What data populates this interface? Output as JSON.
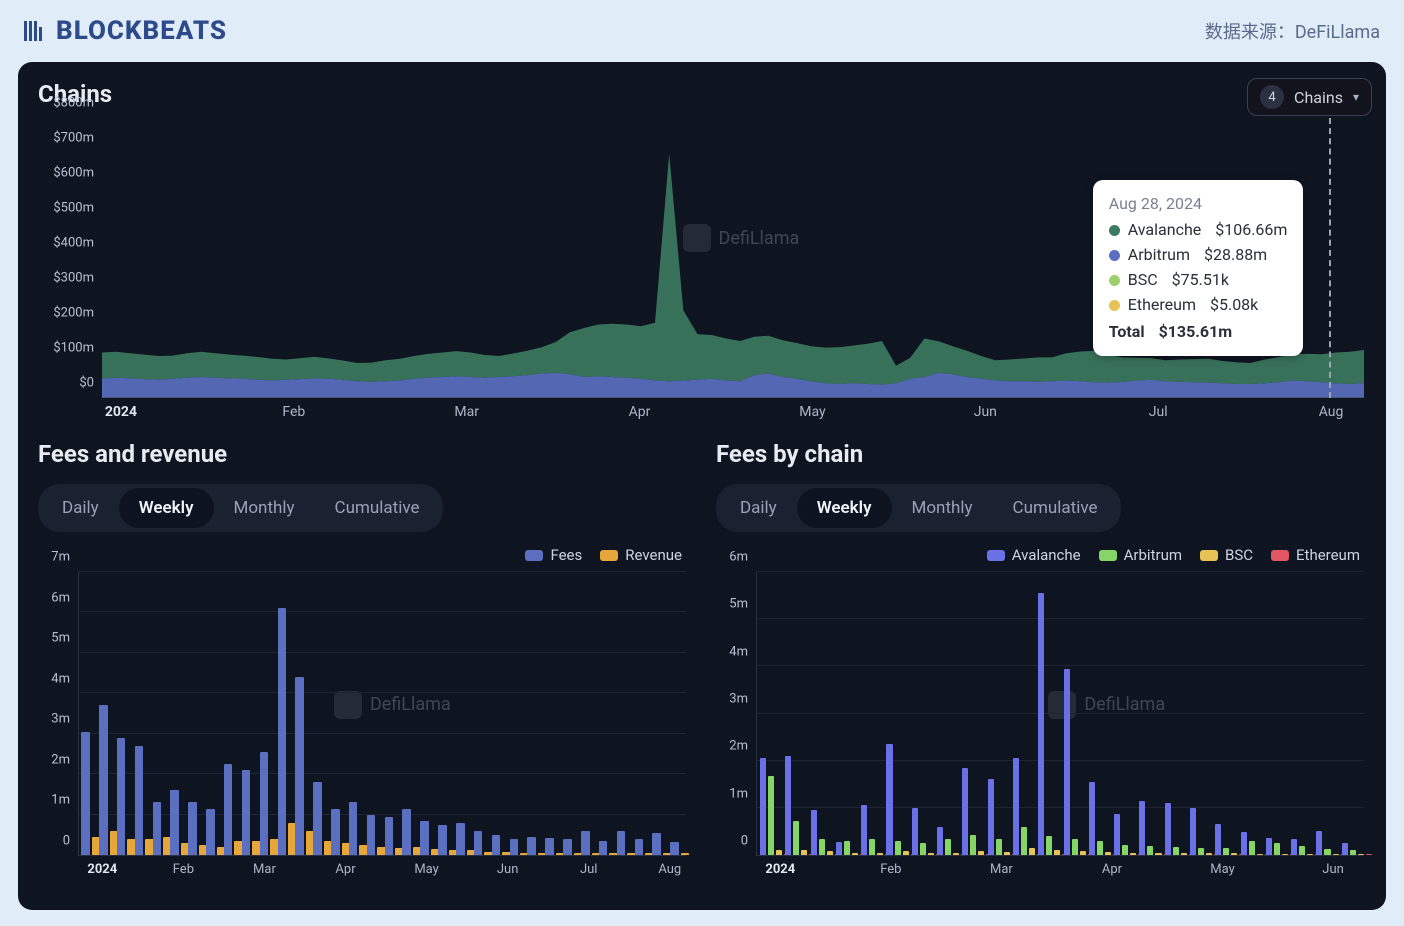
{
  "header": {
    "logo_text": "BLOCKBEATS",
    "data_source_label": "数据来源：DeFiLlama"
  },
  "palette": {
    "page_bg": "#e0edf9",
    "dashboard_bg": "#0e1420",
    "text_light": "#e8ecf2",
    "text_muted": "#9aa2b5",
    "grid": "#1e2433"
  },
  "main_chart": {
    "title": "Chains",
    "selector": {
      "count": "4",
      "label": "Chains"
    },
    "type": "stacked-area",
    "watermark": "DefiLlama",
    "y_axis": {
      "ticks": [
        "$0",
        "$100m",
        "$200m",
        "$300m",
        "$400m",
        "$500m",
        "$600m",
        "$700m",
        "$800m"
      ],
      "max": 800
    },
    "x_axis": {
      "labels": [
        "2024",
        "Feb",
        "Mar",
        "Apr",
        "May",
        "Jun",
        "Jul",
        "Aug"
      ]
    },
    "colors": {
      "Avalanche": "#3b7a5e",
      "Arbitrum": "#5a6fbf",
      "BSC": "#9fcf6a",
      "Ethereum": "#e7c255"
    },
    "series_order": [
      "Arbitrum",
      "Avalanche"
    ],
    "arbitrum_values": [
      55,
      58,
      56,
      54,
      52,
      55,
      58,
      60,
      58,
      56,
      55,
      52,
      50,
      52,
      54,
      56,
      55,
      52,
      48,
      46,
      48,
      50,
      55,
      58,
      60,
      62,
      60,
      58,
      60,
      62,
      65,
      70,
      72,
      68,
      60,
      62,
      60,
      58,
      55,
      50,
      48,
      50,
      52,
      55,
      50,
      48,
      65,
      70,
      60,
      55,
      48,
      42,
      40,
      42,
      40,
      38,
      42,
      55,
      60,
      72,
      68,
      60,
      55,
      50,
      48,
      48,
      46,
      48,
      50,
      48,
      45,
      44,
      46,
      50,
      52,
      48,
      46,
      45,
      44,
      42,
      40,
      40,
      42,
      45,
      50,
      48,
      45,
      42,
      40,
      42
    ],
    "avalanche_values": [
      75,
      74,
      72,
      70,
      68,
      66,
      70,
      72,
      70,
      68,
      66,
      65,
      62,
      58,
      60,
      62,
      58,
      55,
      52,
      55,
      60,
      62,
      65,
      68,
      70,
      72,
      70,
      65,
      60,
      65,
      70,
      75,
      88,
      120,
      140,
      148,
      152,
      152,
      150,
      165,
      650,
      200,
      130,
      125,
      120,
      115,
      110,
      108,
      105,
      102,
      100,
      102,
      105,
      108,
      115,
      125,
      50,
      60,
      110,
      90,
      80,
      75,
      65,
      58,
      62,
      65,
      70,
      68,
      78,
      85,
      90,
      78,
      70,
      65,
      62,
      60,
      64,
      66,
      68,
      64,
      62,
      60,
      68,
      72,
      75,
      78,
      80,
      88,
      92,
      95
    ],
    "tooltip": {
      "date": "Aug 28, 2024",
      "rows": [
        {
          "name": "Avalanche",
          "value": "$106.66m",
          "color": "#3b7a5e"
        },
        {
          "name": "Arbitrum",
          "value": "$28.88m",
          "color": "#5a6fbf"
        },
        {
          "name": "BSC",
          "value": "$75.51k",
          "color": "#9fcf6a"
        },
        {
          "name": "Ethereum",
          "value": "$5.08k",
          "color": "#e7c255"
        }
      ],
      "total_label": "Total",
      "total_value": "$135.61m",
      "x_percent": 97.2
    }
  },
  "tabs": [
    "Daily",
    "Weekly",
    "Monthly",
    "Cumulative"
  ],
  "active_tab": "Weekly",
  "fees_revenue": {
    "title": "Fees and revenue",
    "type": "grouped-bar",
    "watermark": "DefiLlama",
    "legend": [
      {
        "label": "Fees",
        "color": "#5a6fbf"
      },
      {
        "label": "Revenue",
        "color": "#e6a63a"
      }
    ],
    "y_axis": {
      "ticks": [
        "0",
        "1m",
        "2m",
        "3m",
        "4m",
        "5m",
        "6m",
        "7m"
      ],
      "max": 7
    },
    "x_axis": {
      "labels": [
        "2024",
        "Feb",
        "Mar",
        "Apr",
        "May",
        "Jun",
        "Jul",
        "Aug"
      ],
      "bold_index": 0
    },
    "bars": [
      {
        "f": 3.05,
        "r": 0.45
      },
      {
        "f": 3.7,
        "r": 0.6
      },
      {
        "f": 2.9,
        "r": 0.4
      },
      {
        "f": 2.7,
        "r": 0.4
      },
      {
        "f": 1.3,
        "r": 0.45
      },
      {
        "f": 1.6,
        "r": 0.3
      },
      {
        "f": 1.3,
        "r": 0.25
      },
      {
        "f": 1.15,
        "r": 0.2
      },
      {
        "f": 2.25,
        "r": 0.35
      },
      {
        "f": 2.1,
        "r": 0.35
      },
      {
        "f": 2.55,
        "r": 0.4
      },
      {
        "f": 6.1,
        "r": 0.8
      },
      {
        "f": 4.4,
        "r": 0.6
      },
      {
        "f": 1.8,
        "r": 0.35
      },
      {
        "f": 1.15,
        "r": 0.3
      },
      {
        "f": 1.3,
        "r": 0.25
      },
      {
        "f": 1.0,
        "r": 0.2
      },
      {
        "f": 0.95,
        "r": 0.18
      },
      {
        "f": 1.15,
        "r": 0.2
      },
      {
        "f": 0.85,
        "r": 0.15
      },
      {
        "f": 0.75,
        "r": 0.13
      },
      {
        "f": 0.8,
        "r": 0.12
      },
      {
        "f": 0.6,
        "r": 0.08
      },
      {
        "f": 0.5,
        "r": 0.08
      },
      {
        "f": 0.4,
        "r": 0.06
      },
      {
        "f": 0.45,
        "r": 0.06
      },
      {
        "f": 0.42,
        "r": 0.05
      },
      {
        "f": 0.4,
        "r": 0.05
      },
      {
        "f": 0.6,
        "r": 0.06
      },
      {
        "f": 0.35,
        "r": 0.05
      },
      {
        "f": 0.6,
        "r": 0.06
      },
      {
        "f": 0.4,
        "r": 0.05
      },
      {
        "f": 0.55,
        "r": 0.05
      },
      {
        "f": 0.32,
        "r": 0.04
      }
    ]
  },
  "fees_by_chain": {
    "title": "Fees by chain",
    "type": "grouped-bar",
    "watermark": "DefiLlama",
    "legend": [
      {
        "label": "Avalanche",
        "color": "#6a71e6"
      },
      {
        "label": "Arbitrum",
        "color": "#86d666"
      },
      {
        "label": "BSC",
        "color": "#e7c255"
      },
      {
        "label": "Ethereum",
        "color": "#e25563"
      }
    ],
    "y_axis": {
      "ticks": [
        "0",
        "1m",
        "2m",
        "3m",
        "4m",
        "5m",
        "6m"
      ],
      "max": 6
    },
    "x_axis": {
      "labels": [
        "2024",
        "Feb",
        "Mar",
        "Apr",
        "May",
        "Jun"
      ],
      "bold_index": 0
    },
    "bars": [
      {
        "a": 2.05,
        "b": 1.68,
        "c": 0.1,
        "d": 0.02
      },
      {
        "a": 2.1,
        "b": 0.72,
        "c": 0.1,
        "d": 0.02
      },
      {
        "a": 0.95,
        "b": 0.35,
        "c": 0.08,
        "d": 0.02
      },
      {
        "a": 0.28,
        "b": 0.3,
        "c": 0.05,
        "d": 0.02
      },
      {
        "a": 1.05,
        "b": 0.35,
        "c": 0.05,
        "d": 0.02
      },
      {
        "a": 2.35,
        "b": 0.3,
        "c": 0.08,
        "d": 0.02
      },
      {
        "a": 1.0,
        "b": 0.25,
        "c": 0.05,
        "d": 0.02
      },
      {
        "a": 0.6,
        "b": 0.35,
        "c": 0.05,
        "d": 0.02
      },
      {
        "a": 1.85,
        "b": 0.42,
        "c": 0.08,
        "d": 0.02
      },
      {
        "a": 1.62,
        "b": 0.35,
        "c": 0.06,
        "d": 0.02
      },
      {
        "a": 2.05,
        "b": 0.6,
        "c": 0.15,
        "d": 0.02
      },
      {
        "a": 5.55,
        "b": 0.4,
        "c": 0.1,
        "d": 0.02
      },
      {
        "a": 3.95,
        "b": 0.35,
        "c": 0.08,
        "d": 0.02
      },
      {
        "a": 1.55,
        "b": 0.3,
        "c": 0.06,
        "d": 0.02
      },
      {
        "a": 0.88,
        "b": 0.22,
        "c": 0.05,
        "d": 0.02
      },
      {
        "a": 1.15,
        "b": 0.2,
        "c": 0.04,
        "d": 0.02
      },
      {
        "a": 1.1,
        "b": 0.18,
        "c": 0.04,
        "d": 0.02
      },
      {
        "a": 1.0,
        "b": 0.15,
        "c": 0.04,
        "d": 0.02
      },
      {
        "a": 0.65,
        "b": 0.15,
        "c": 0.04,
        "d": 0.02
      },
      {
        "a": 0.48,
        "b": 0.3,
        "c": 0.03,
        "d": 0.02
      },
      {
        "a": 0.36,
        "b": 0.25,
        "c": 0.03,
        "d": 0.02
      },
      {
        "a": 0.35,
        "b": 0.2,
        "c": 0.03,
        "d": 0.02
      },
      {
        "a": 0.5,
        "b": 0.12,
        "c": 0.02,
        "d": 0.02
      },
      {
        "a": 0.25,
        "b": 0.1,
        "c": 0.02,
        "d": 0.02
      }
    ]
  }
}
